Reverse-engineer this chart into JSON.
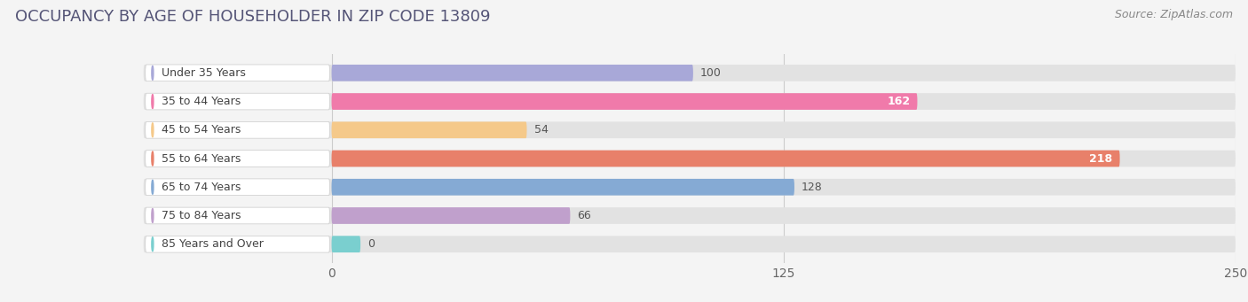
{
  "title": "OCCUPANCY BY AGE OF HOUSEHOLDER IN ZIP CODE 13809",
  "source": "Source: ZipAtlas.com",
  "categories": [
    "Under 35 Years",
    "35 to 44 Years",
    "45 to 54 Years",
    "55 to 64 Years",
    "65 to 74 Years",
    "75 to 84 Years",
    "85 Years and Over"
  ],
  "values": [
    100,
    162,
    54,
    218,
    128,
    66,
    0
  ],
  "bar_colors": [
    "#a8a8d8",
    "#f07aaa",
    "#f5c98a",
    "#e8806a",
    "#85aad4",
    "#c0a0cc",
    "#7acfcf"
  ],
  "value_inside": [
    false,
    true,
    false,
    true,
    false,
    false,
    false
  ],
  "xlim_max": 250,
  "xticks": [
    0,
    125,
    250
  ],
  "background_color": "#f4f4f4",
  "bar_bg_color": "#e2e2e2",
  "label_bg_color": "#ffffff",
  "title_fontsize": 13,
  "source_fontsize": 9,
  "tick_fontsize": 10,
  "cat_fontsize": 9,
  "val_fontsize": 9
}
